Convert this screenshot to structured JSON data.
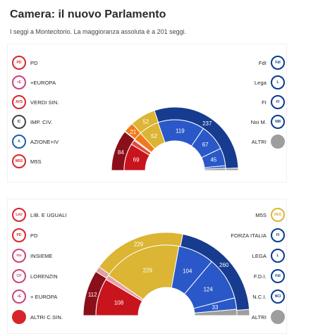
{
  "title": "Camera: il nuovo Parlamento",
  "subtitle": "I seggi a Montecitorio. La maggioranza assoluta è a 201 seggi.",
  "chart_data": [
    {
      "type": "hemicycle",
      "total": 400,
      "legend_left": [
        {
          "label": "PD",
          "logo_color": "#d7262b",
          "logo_text": "PD"
        },
        {
          "label": "+EUROPA",
          "logo_color": "#c9447a",
          "logo_text": "+E"
        },
        {
          "label": "VERDI SIN.",
          "logo_color": "#d7262b",
          "logo_text": "AVS"
        },
        {
          "label": "IMP. CIV.",
          "logo_color": "#444444",
          "logo_text": "IC"
        },
        {
          "label": "AZIONE+IV",
          "logo_color": "#1f5fb0",
          "logo_text": "A"
        },
        {
          "label": "M5S",
          "logo_color": "#d7262b",
          "logo_text": "M5S"
        }
      ],
      "legend_right": [
        {
          "label": "FdI",
          "logo_color": "#0b3b8c",
          "logo_text": "FdI"
        },
        {
          "label": "Lega",
          "logo_color": "#0b3b8c",
          "logo_text": "L"
        },
        {
          "label": "FI",
          "logo_color": "#0b3b8c",
          "logo_text": "FI"
        },
        {
          "label": "Noi M.",
          "logo_color": "#0b3b8c",
          "logo_text": "NM"
        },
        {
          "label": "ALTRI",
          "logo_color": "#9e9e9e",
          "logo_text": "",
          "filled": true
        }
      ],
      "outer_ring": [
        {
          "value": 84,
          "color": "#8b0f1a",
          "label": "84"
        },
        {
          "value": 1,
          "color": "#e2a0a0",
          "label": ""
        },
        {
          "value": 21,
          "color": "#f07a1a",
          "label": "21"
        },
        {
          "value": 52,
          "color": "#dbb533",
          "label": "52"
        },
        {
          "value": 237,
          "color": "#173c8f",
          "label": "237"
        },
        {
          "value": 5,
          "color": "#9e9e9e",
          "label": ""
        }
      ],
      "inner_ring": [
        {
          "value": 69,
          "color": "#c8141c",
          "label": "69"
        },
        {
          "value": 12,
          "color": "#e04a3a",
          "label": ""
        },
        {
          "value": 3,
          "color": "#e9a0a8",
          "label": ""
        },
        {
          "value": 21,
          "color": "#f07a1a",
          "label": ""
        },
        {
          "value": 52,
          "color": "#dbb533",
          "label": "52"
        },
        {
          "value": 119,
          "color": "#2a58c8",
          "label": "119"
        },
        {
          "value": 67,
          "color": "#2a58c8",
          "label": "67"
        },
        {
          "value": 45,
          "color": "#2a58c8",
          "label": "45"
        },
        {
          "value": 6,
          "color": "#2a58c8",
          "label": ""
        },
        {
          "value": 6,
          "color": "#9e9e9e",
          "label": ""
        }
      ]
    },
    {
      "type": "hemicycle",
      "total": 630,
      "legend_left": [
        {
          "label": "LIB. E UGUALI",
          "logo_color": "#d7262b",
          "logo_text": "LeU"
        },
        {
          "label": "PD",
          "logo_color": "#d7262b",
          "logo_text": "PD"
        },
        {
          "label": "INSIEME",
          "logo_color": "#c9447a",
          "logo_text": "Ins"
        },
        {
          "label": "LORENZIN",
          "logo_color": "#c9447a",
          "logo_text": "CP"
        },
        {
          "label": "+ EUROPA",
          "logo_color": "#c9447a",
          "logo_text": "+E"
        },
        {
          "label": "ALTRI C.SIN.",
          "logo_color": "#d7262b",
          "logo_text": "",
          "filled": true
        }
      ],
      "legend_right": [
        {
          "label": "M5S",
          "logo_color": "#dbb533",
          "logo_text": "M5S"
        },
        {
          "label": "FORZA ITALIA",
          "logo_color": "#0b3b8c",
          "logo_text": "FI"
        },
        {
          "label": "LEGA",
          "logo_color": "#0b3b8c",
          "logo_text": "L"
        },
        {
          "label": "F.D.I.",
          "logo_color": "#0b3b8c",
          "logo_text": "FdI"
        },
        {
          "label": "N.C.I.",
          "logo_color": "#0b3b8c",
          "logo_text": "NCI"
        },
        {
          "label": "ALTRI",
          "logo_color": "#9e9e9e",
          "logo_text": "",
          "filled": true
        }
      ],
      "outer_ring": [
        {
          "value": 112,
          "color": "#8b0f1a",
          "label": "112"
        },
        {
          "value": 14,
          "color": "#e2a0a0",
          "label": ""
        },
        {
          "value": 229,
          "color": "#dbb533",
          "label": "229"
        },
        {
          "value": 260,
          "color": "#173c8f",
          "label": "260"
        },
        {
          "value": 15,
          "color": "#9e9e9e",
          "label": ""
        }
      ],
      "inner_ring": [
        {
          "value": 108,
          "color": "#c8141c",
          "label": "108"
        },
        {
          "value": 14,
          "color": "#e9a0a8",
          "label": ""
        },
        {
          "value": 229,
          "color": "#dbb533",
          "label": "229"
        },
        {
          "value": 104,
          "color": "#2a58c8",
          "label": "104"
        },
        {
          "value": 124,
          "color": "#2a58c8",
          "label": "124"
        },
        {
          "value": 33,
          "color": "#2a58c8",
          "label": "33"
        },
        {
          "value": 18,
          "color": "#9e9e9e",
          "label": ""
        }
      ]
    }
  ]
}
